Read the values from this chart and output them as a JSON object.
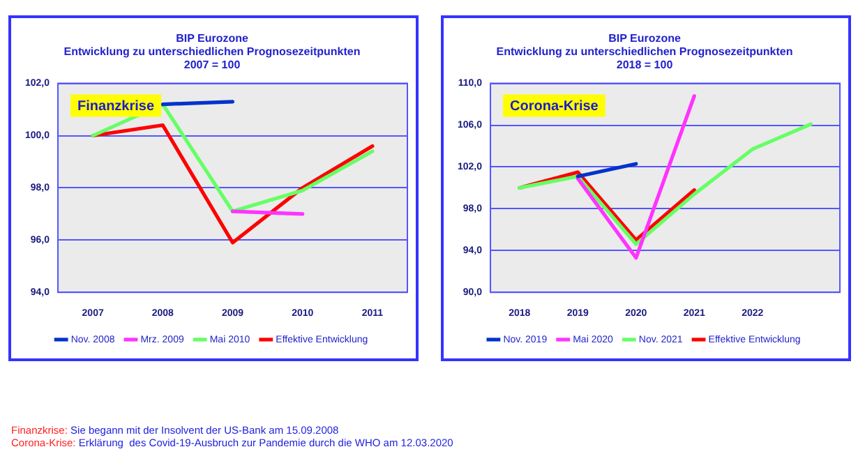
{
  "chart_data": [
    {
      "type": "line",
      "title": "BIP Eurozone",
      "subtitle": "Entwicklung zu unterschiedlichen Prognosezeitpunkten\n2007 = 100",
      "categories": [
        "2007",
        "2008",
        "2009",
        "2010",
        "2011"
      ],
      "series": [
        {
          "name": "Nov. 2008",
          "color": "#0033cc",
          "values": [
            null,
            101.2,
            101.3,
            null,
            null
          ]
        },
        {
          "name": "Mrz. 2009",
          "color": "#ff33ff",
          "values": [
            null,
            null,
            97.1,
            97.0,
            null
          ]
        },
        {
          "name": "Mai 2010",
          "color": "#66ff66",
          "values": [
            100,
            101.2,
            97.1,
            97.9,
            99.4
          ]
        },
        {
          "name": "Effektive Entwicklung",
          "color": "#ff0000",
          "values": [
            100,
            100.4,
            95.9,
            98.0,
            99.6
          ]
        }
      ],
      "ylim": [
        94,
        102
      ],
      "yticks": [
        {
          "value": 94,
          "label": "94,0"
        },
        {
          "value": 96,
          "label": "96,0"
        },
        {
          "value": 98,
          "label": "98,0"
        },
        {
          "value": 100,
          "label": "100,0"
        },
        {
          "value": 102,
          "label": "102,0"
        }
      ],
      "grid": "y",
      "legend": "bottom",
      "marker": "none",
      "line_style": "solid",
      "annotations": [
        "Finanzkrise",
        "Finanzkrise: Sie begann mit der Insolvent der US-Bank am 15.09.2008"
      ]
    },
    {
      "type": "line",
      "title": "BIP Eurozone",
      "subtitle": "Entwicklung zu unterschiedlichen Prognosezeitpunkten\n2018 = 100",
      "categories": [
        "2018",
        "2019",
        "2020",
        "2021",
        "2022",
        null
      ],
      "series": [
        {
          "name": "Nov. 2019",
          "color": "#0033cc",
          "values": [
            null,
            101.1,
            102.3,
            null,
            null,
            null
          ]
        },
        {
          "name": "Mai 2020",
          "color": "#ff33ff",
          "values": [
            null,
            100.9,
            93.3,
            108.8,
            null,
            null
          ]
        },
        {
          "name": "Nov. 2021",
          "color": "#66ff66",
          "values": [
            100,
            101.1,
            94.6,
            99.4,
            103.7,
            106.1
          ]
        },
        {
          "name": "Effektive Entwicklung",
          "color": "#ff0000",
          "values": [
            100,
            101.5,
            95.0,
            99.8,
            null,
            null
          ]
        }
      ],
      "ylim": [
        90,
        110
      ],
      "yticks": [
        {
          "value": 90,
          "label": "90,0"
        },
        {
          "value": 94,
          "label": "94,0"
        },
        {
          "value": 98,
          "label": "98,0"
        },
        {
          "value": 102,
          "label": "102,0"
        },
        {
          "value": 106,
          "label": "106,0"
        },
        {
          "value": 110,
          "label": "110,0"
        }
      ],
      "grid": "y",
      "legend": "bottom",
      "marker": "none",
      "line_style": "solid",
      "annotations": [
        "Corona-Krise",
        "Corona-Krise: Erklärung  des Covid-19-Ausbruch zur Pandemie durch die WHO am 12.03.2020"
      ]
    }
  ]
}
